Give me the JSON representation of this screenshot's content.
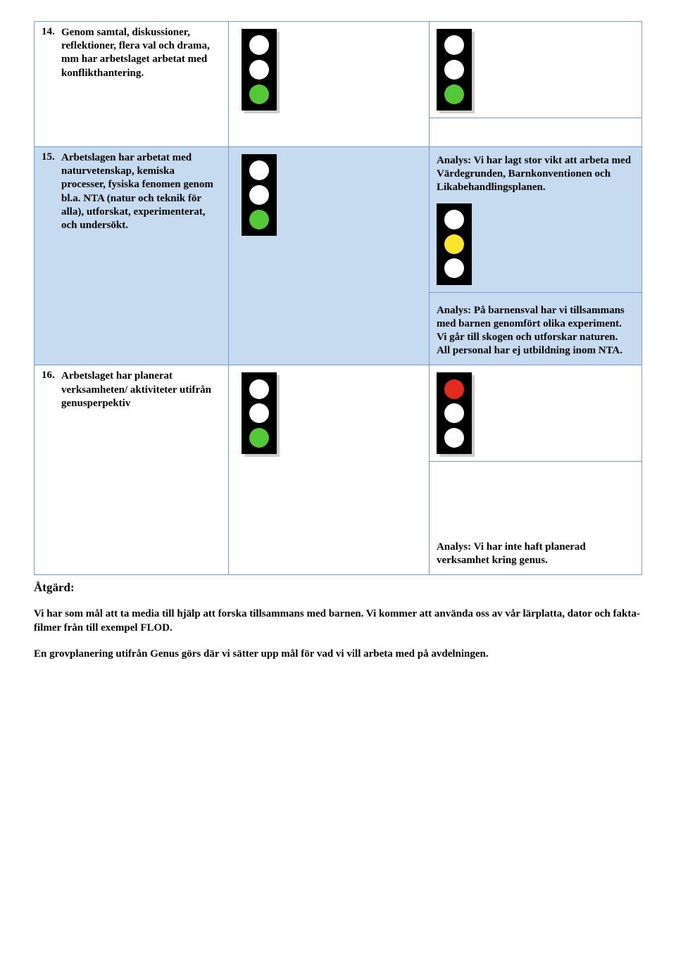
{
  "colors": {
    "border": "#6d9dd1",
    "blue_bg": "#c6dbf0",
    "off": "#ffffff",
    "green": "#55c838",
    "yellow": "#f9e52c",
    "red": "#e52a20",
    "black": "#000000"
  },
  "rows": [
    {
      "number": "14.",
      "text": "Genom samtal, diskussioner, reflektioner, flera val och drama, mm har arbetslaget arbetat med konflikthantering.",
      "blue": false,
      "light1": [
        "off",
        "off",
        "green"
      ],
      "light2": [
        "off",
        "off",
        "green"
      ],
      "analysis_above": "",
      "analysis_below": ""
    },
    {
      "number": "15.",
      "text": "Arbetslagen har arbetat med naturvetenskap, kemiska processer, fysiska fenomen genom bl.a. NTA (natur och teknik för alla), utforskat, experimenterat, och undersökt.",
      "blue": true,
      "light1": [
        "off",
        "off",
        "green"
      ],
      "light2": [
        "off",
        "yellow",
        "off"
      ],
      "analysis_above": "Analys: Vi har lagt stor vikt att arbeta med Värdegrunden, Barnkonventionen och Likabehandlingsplanen.",
      "analysis_below": "Analys: På barnensval har vi tillsammans med barnen genomfört olika experiment. Vi går till skogen och utforskar naturen. All personal har ej utbildning inom NTA."
    },
    {
      "number": "16.",
      "text": "Arbetslaget har planerat verksamheten/ aktiviteter utifrån genusperpektiv",
      "blue": false,
      "light1": [
        "off",
        "off",
        "green"
      ],
      "light2": [
        "red",
        "off",
        "off"
      ],
      "analysis_above": "",
      "analysis_below": ""
    }
  ],
  "final_analysis": "Analys: Vi har inte haft planerad verksamhet kring genus.",
  "atgard_label": "Åtgärd:",
  "body1": "Vi har som mål att ta media till hjälp att forska tillsammans med barnen. Vi kommer att använda oss av vår lärplatta, dator och fakta-filmer från till exempel FLOD.",
  "body2": "En grovplanering utifrån Genus görs där vi sätter upp mål för vad vi vill arbeta med på avdelningen."
}
